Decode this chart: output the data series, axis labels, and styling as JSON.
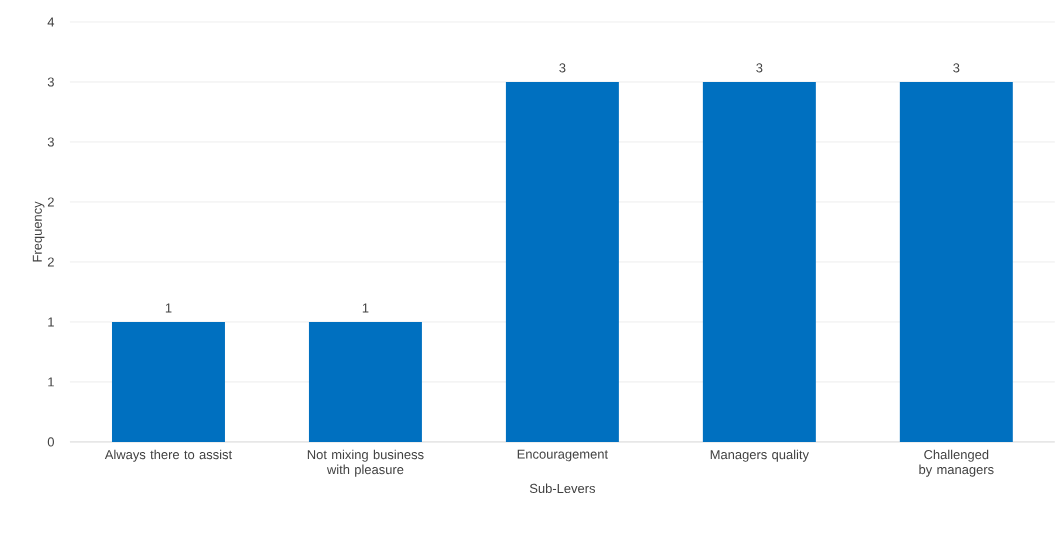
{
  "chart_data": {
    "type": "bar",
    "xlabel": "Sub-Levers",
    "ylabel": "Frequency",
    "categories": [
      "Always there to assist",
      "Not mixing business with pleasure",
      "Encouragement",
      "Managers quality",
      "Challenged by managers"
    ],
    "values": [
      1,
      1,
      3,
      3,
      3
    ],
    "color": "#0070c0",
    "data_labels": true,
    "grid": "y",
    "ylim": [
      0,
      3.5
    ],
    "yticks": [
      {
        "value": 0,
        "label": "0"
      },
      {
        "value": 0.5,
        "label": "1"
      },
      {
        "value": 1,
        "label": "1"
      },
      {
        "value": 1.5,
        "label": "2"
      },
      {
        "value": 2,
        "label": "2"
      },
      {
        "value": 2.5,
        "label": "3"
      },
      {
        "value": 3,
        "label": "3"
      },
      {
        "value": 3.5,
        "label": "4"
      }
    ]
  }
}
